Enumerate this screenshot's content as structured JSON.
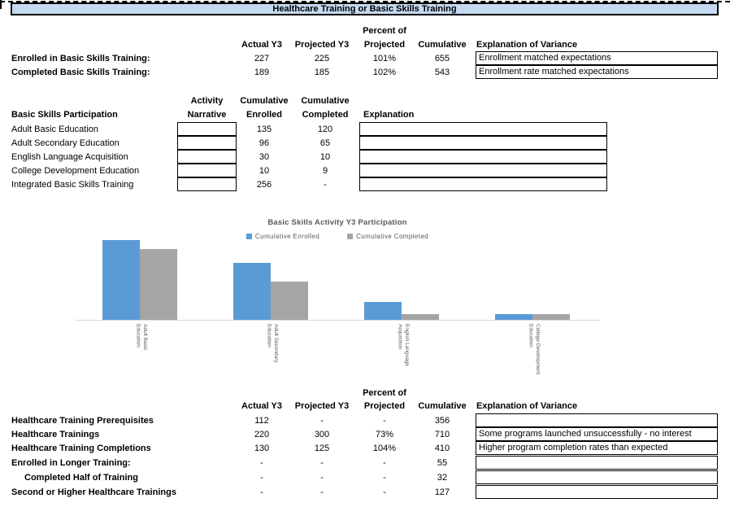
{
  "banner": {
    "title": "Healthcare Training or Basic Skills Training"
  },
  "colors": {
    "banner_bg": "#C5D9F1",
    "bar_enrolled": "#5B9BD5",
    "bar_completed": "#A5A5A5",
    "chart_text": "#595959",
    "axis_line": "#D9D9D9"
  },
  "summary_top": {
    "headers": {
      "percent_line1": "Percent of",
      "actual": "Actual Y3",
      "projected": "Projected Y3",
      "percent_line2": "Projected",
      "cumulative": "Cumulative",
      "explanation": "Explanation of Variance"
    },
    "rows": [
      {
        "label": "Enrolled in Basic Skills Training:",
        "actual": "227",
        "projected": "225",
        "percent": "101%",
        "cumulative": "655",
        "explanation": "Enrollment matched expectations"
      },
      {
        "label": "Completed Basic Skills Training:",
        "actual": "189",
        "projected": "185",
        "percent": "102%",
        "cumulative": "543",
        "explanation": "Enrollment rate matched expectations"
      }
    ]
  },
  "participation": {
    "section_label": "Basic Skills Participation",
    "headers": {
      "activity_line1": "Activity",
      "activity_line2": "Narrative",
      "enrolled_line1": "Cumulative",
      "enrolled_line2": "Enrolled",
      "completed_line1": "Cumulative",
      "completed_line2": "Completed",
      "explanation": "Explanation"
    },
    "rows": [
      {
        "label": "Adult Basic Education",
        "narrative": "",
        "enrolled": "135",
        "completed": "120",
        "explanation": ""
      },
      {
        "label": "Adult Secondary Education",
        "narrative": "",
        "enrolled": "96",
        "completed": "65",
        "explanation": ""
      },
      {
        "label": "English Language Acquisition",
        "narrative": "",
        "enrolled": "30",
        "completed": "10",
        "explanation": ""
      },
      {
        "label": "College Development Education",
        "narrative": "",
        "enrolled": "10",
        "completed": "9",
        "explanation": ""
      },
      {
        "label": "Integrated Basic Skills Training",
        "narrative": "",
        "enrolled": "256",
        "completed": "-",
        "explanation": ""
      }
    ]
  },
  "chart_data": {
    "type": "bar",
    "title": "Basic Skills Activity Y3 Participation",
    "categories": [
      "Adult Basic Education",
      "Adult Secondary Education",
      "English Language Acquisition",
      "College Development Education"
    ],
    "category_wraps": [
      [
        "Adult Basic",
        "Education"
      ],
      [
        "Adult Secondary",
        "Education"
      ],
      [
        "English Language",
        "Acquisition"
      ],
      [
        "College Development",
        "Education"
      ]
    ],
    "series": [
      {
        "name": "Cumulative Enrolled",
        "values": [
          135,
          96,
          30,
          10
        ],
        "color": "#5B9BD5"
      },
      {
        "name": "Cumulative Completed",
        "values": [
          120,
          65,
          10,
          9
        ],
        "color": "#A5A5A5"
      }
    ],
    "xlabel": "",
    "ylabel": "",
    "ylim": [
      0,
      140
    ],
    "grid": false,
    "legend_position": "top"
  },
  "summary_bottom": {
    "headers": {
      "percent_line1": "Percent of",
      "actual": "Actual Y3",
      "projected": "Projected Y3",
      "percent_line2": "Projected",
      "cumulative": "Cumulative",
      "explanation": "Explanation of Variance"
    },
    "rows": [
      {
        "label": "Healthcare Training Prerequisites",
        "indent": false,
        "actual": "112",
        "projected": "-",
        "percent": "-",
        "cumulative": "356",
        "explanation": ""
      },
      {
        "label": "Healthcare Trainings",
        "indent": false,
        "actual": "220",
        "projected": "300",
        "percent": "73%",
        "cumulative": "710",
        "explanation": "Some programs launched unsuccessfully - no interest"
      },
      {
        "label": "Healthcare Training Completions",
        "indent": false,
        "actual": "130",
        "projected": "125",
        "percent": "104%",
        "cumulative": "410",
        "explanation": "Higher program completion rates than expected"
      },
      {
        "label": "Enrolled in Longer Training:",
        "indent": false,
        "actual": "-",
        "projected": "-",
        "percent": "-",
        "cumulative": "55",
        "explanation": ""
      },
      {
        "label": "Completed Half of Training",
        "indent": true,
        "actual": "-",
        "projected": "-",
        "percent": "-",
        "cumulative": "32",
        "explanation": ""
      },
      {
        "label": "Second or Higher Healthcare Trainings",
        "indent": false,
        "actual": "-",
        "projected": "-",
        "percent": "-",
        "cumulative": "127",
        "explanation": ""
      }
    ]
  }
}
